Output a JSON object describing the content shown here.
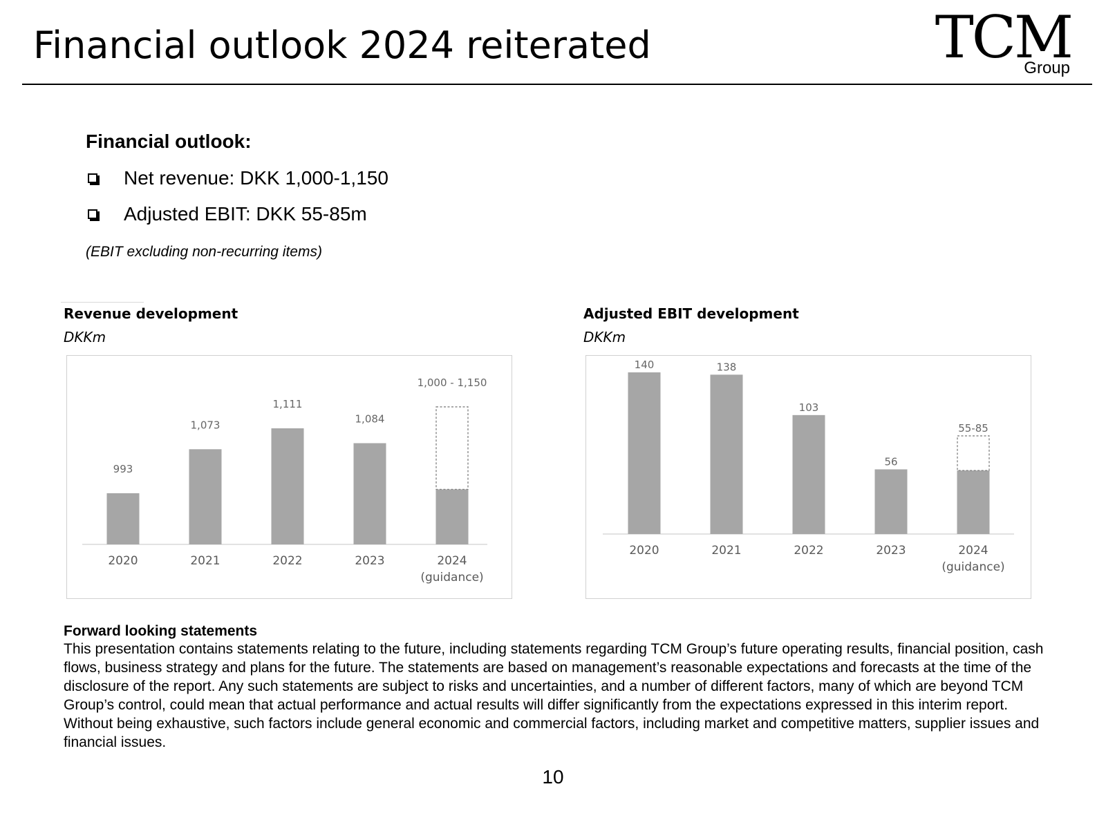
{
  "slide": {
    "title": "Financial outlook 2024 reiterated",
    "logo": {
      "main": "TCM",
      "sub": "Group"
    },
    "page_number": "10"
  },
  "outlook": {
    "heading": "Financial outlook:",
    "items": [
      "Net revenue: DKK 1,000-1,150",
      "Adjusted EBIT: DKK 55-85m"
    ],
    "note": "(EBIT excluding non-recurring items)"
  },
  "forward_looking": {
    "heading": "Forward looking statements",
    "body": "This presentation contains statements relating to the future, including statements regarding TCM Group’s future operating results, financial position, cash flows, business strategy and plans for the future. The statements are based on management’s reasonable expectations and forecasts at the time of the disclosure of the report. Any such statements are subject to risks and uncertainties, and a number of different factors, many of which are beyond TCM Group’s control, could mean that actual performance and actual results will differ significantly from the expectations expressed in this interim report. Without being exhaustive, such factors include general economic and commercial factors, including market and competitive matters, supplier issues and financial issues."
  },
  "chart_data": [
    {
      "type": "bar",
      "title": "Revenue development",
      "unit": "DKKm",
      "categories": [
        "2020",
        "2021",
        "2022",
        "2023",
        "2024"
      ],
      "category_sublabels": [
        "",
        "",
        "",
        "",
        "(guidance)"
      ],
      "values": [
        993,
        1073,
        1111,
        1084,
        1000
      ],
      "guidance": {
        "category": "2024",
        "low": 1000,
        "high": 1150
      },
      "data_labels": [
        "993",
        "1,073",
        "1,111",
        "1,084",
        "1,000  - 1,150"
      ],
      "ylim": [
        900,
        1160
      ],
      "grid": false,
      "legend": "none",
      "bar_color": "#a6a6a6",
      "guidance_border_color": "#808080"
    },
    {
      "type": "bar",
      "title": "Adjusted EBIT development",
      "unit": "DKKm",
      "categories": [
        "2020",
        "2021",
        "2022",
        "2023",
        "2024"
      ],
      "category_sublabels": [
        "",
        "",
        "",
        "",
        "(guidance)"
      ],
      "values": [
        140,
        138,
        103,
        56,
        55
      ],
      "guidance": {
        "category": "2024",
        "low": 55,
        "high": 85
      },
      "data_labels": [
        "140",
        "138",
        "103",
        "56",
        "55-85"
      ],
      "ylim": [
        0,
        140
      ],
      "grid": false,
      "legend": "none",
      "bar_color": "#a6a6a6",
      "guidance_border_color": "#808080"
    }
  ]
}
